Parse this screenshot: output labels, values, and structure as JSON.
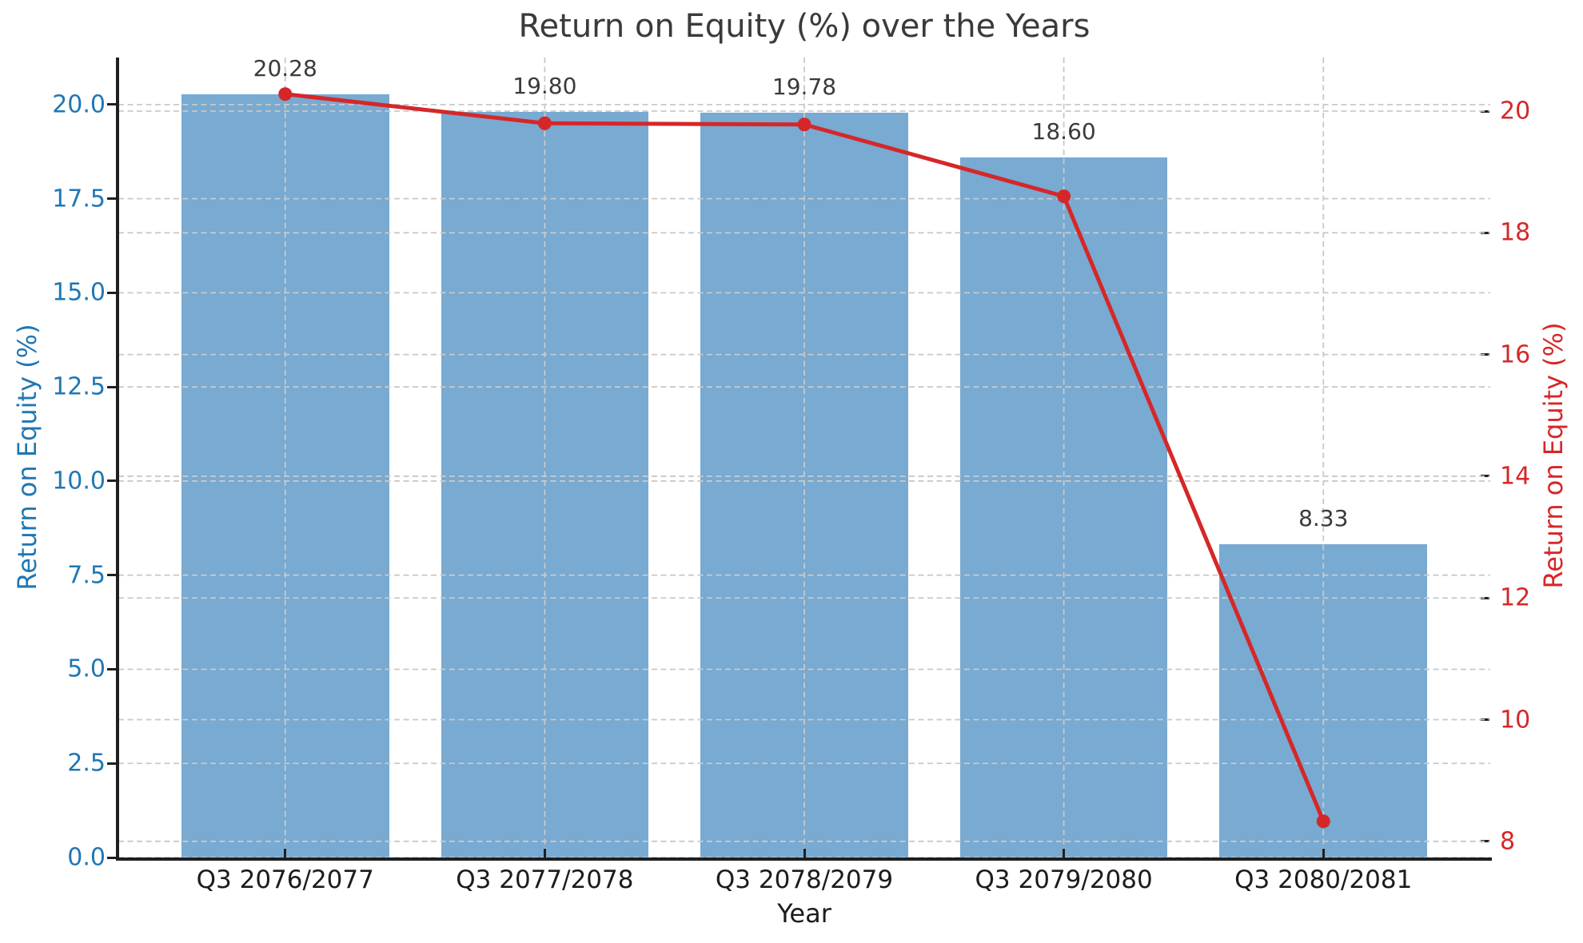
{
  "chart_data": {
    "type": "bar",
    "title": "Return on Equity (%) over the Years",
    "xlabel": "Year",
    "ylabel_left": "Return on Equity (%)",
    "ylabel_right": "Return on Equity (%)",
    "categories": [
      "Q3 2076/2077",
      "Q3 2077/2078",
      "Q3 2078/2079",
      "Q3 2079/2080",
      "Q3 2080/2081"
    ],
    "series": [
      {
        "name": "roe-bars",
        "type": "bar",
        "axis": "left",
        "values": [
          20.28,
          19.8,
          19.78,
          18.6,
          8.33
        ]
      },
      {
        "name": "roe-line",
        "type": "line",
        "axis": "right",
        "values": [
          20.28,
          19.8,
          19.78,
          18.6,
          8.33
        ]
      }
    ],
    "data_labels": [
      "20.28",
      "19.80",
      "19.78",
      "18.60",
      "8.33"
    ],
    "left_axis": {
      "tick_labels": [
        "0.0",
        "2.5",
        "5.0",
        "7.5",
        "10.0",
        "12.5",
        "15.0",
        "17.5",
        "20.0"
      ],
      "tick_values": [
        0,
        2.5,
        5,
        7.5,
        10,
        12.5,
        15,
        17.5,
        20
      ],
      "lim": [
        0,
        21.25
      ]
    },
    "right_axis": {
      "tick_labels": [
        "8",
        "10",
        "12",
        "14",
        "16",
        "18",
        "20"
      ],
      "tick_values": [
        8,
        10,
        12,
        14,
        16,
        18,
        20
      ],
      "lim": [
        7.735,
        20.88
      ]
    },
    "xlim": [
      -0.643,
      4.643
    ],
    "bar_width": 0.8,
    "grid": true,
    "legend": "none",
    "colors": {
      "bar_fill": "#78aad2",
      "line": "#d62728",
      "left_axis_text": "#1f77b4",
      "right_axis_text": "#d62728",
      "title_text": "#3a3a3a",
      "tick_text": "#1c1c1c",
      "gridline": "#c9c9c9",
      "spine": "#1f1f1f"
    }
  }
}
